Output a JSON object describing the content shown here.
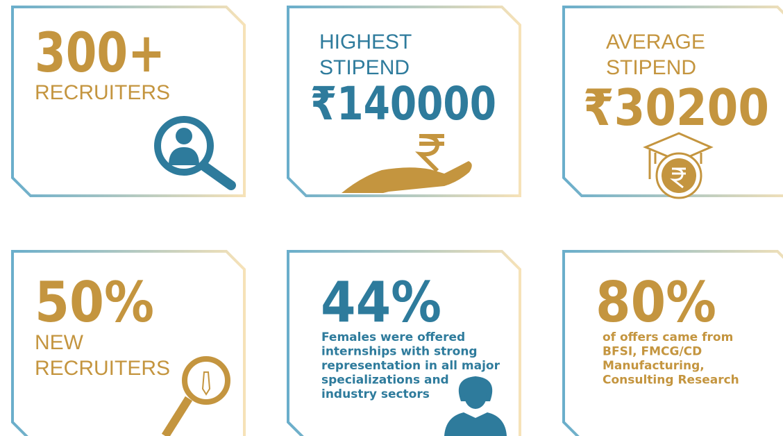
{
  "cards": [
    {
      "headline": "300+",
      "lines": [
        "RECRUITERS"
      ]
    },
    {
      "heading": [
        "HIGHEST",
        "STIPEND"
      ],
      "headline": "₹140000"
    },
    {
      "heading": [
        "AVERAGE",
        "STIPEND"
      ],
      "headline": "₹30200"
    },
    {
      "headline": "50%",
      "lines": [
        "NEW",
        "RECRUITERS"
      ]
    },
    {
      "headline": "44%",
      "lines": [
        "Females were offered",
        "internships with strong",
        "representation in all major",
        "specializations and",
        "industry sectors"
      ]
    },
    {
      "headline": "80%",
      "lines": [
        "of offers came from",
        "BFSI, FMCG/CD",
        "Manufacturing,",
        "Consulting Research"
      ]
    }
  ]
}
